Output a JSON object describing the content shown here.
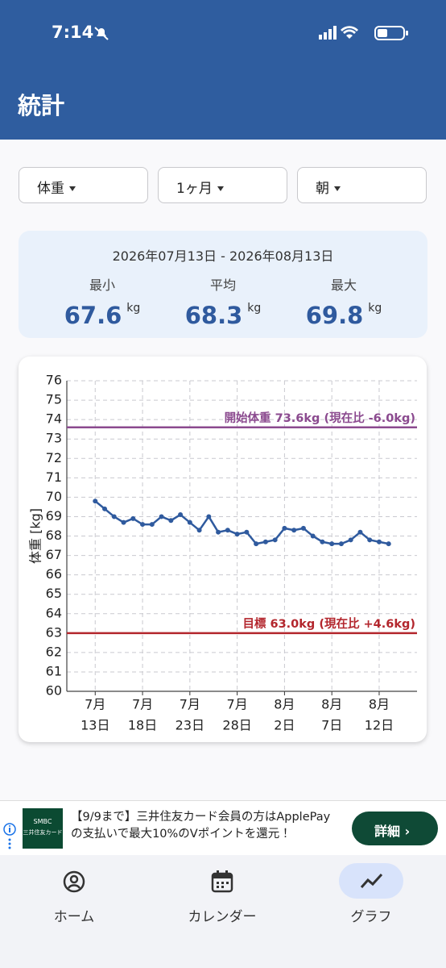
{
  "status_bar": {
    "time": "7:14"
  },
  "header": {
    "title": "統計"
  },
  "filters": [
    {
      "label": "体重"
    },
    {
      "label": "1ヶ月"
    },
    {
      "label": "朝"
    }
  ],
  "summary": {
    "range": "2026年07月13日 - 2026年08月13日",
    "unit": "kg",
    "stats": [
      {
        "label": "最小",
        "value": "67.6"
      },
      {
        "label": "平均",
        "value": "68.3"
      },
      {
        "label": "最大",
        "value": "69.8"
      }
    ]
  },
  "chart_data": {
    "type": "line",
    "y_label": "体重 [kg]",
    "x": [
      "2026-07-13",
      "2026-07-14",
      "2026-07-15",
      "2026-07-16",
      "2026-07-17",
      "2026-07-18",
      "2026-07-19",
      "2026-07-20",
      "2026-07-21",
      "2026-07-22",
      "2026-07-23",
      "2026-07-24",
      "2026-07-25",
      "2026-07-26",
      "2026-07-27",
      "2026-07-28",
      "2026-07-29",
      "2026-07-30",
      "2026-07-31",
      "2026-08-01",
      "2026-08-02",
      "2026-08-03",
      "2026-08-04",
      "2026-08-05",
      "2026-08-06",
      "2026-08-07",
      "2026-08-08",
      "2026-08-09",
      "2026-08-10",
      "2026-08-11",
      "2026-08-12",
      "2026-08-13"
    ],
    "series": [
      {
        "name": "体重",
        "color": "#2f5a9e",
        "values": [
          69.8,
          69.4,
          69.0,
          68.7,
          68.9,
          68.6,
          68.6,
          69.0,
          68.8,
          69.1,
          68.7,
          68.3,
          69.0,
          68.2,
          68.3,
          68.1,
          68.2,
          67.6,
          67.7,
          67.8,
          68.4,
          68.3,
          68.4,
          68.0,
          67.7,
          67.6,
          67.6,
          67.8,
          68.2,
          67.8,
          67.7,
          67.6
        ]
      }
    ],
    "xlim": [
      "2026-07-10",
      "2026-08-16"
    ],
    "xticks": [
      {
        "value": "2026-07-13",
        "label": [
          "7月",
          "13日"
        ]
      },
      {
        "value": "2026-07-18",
        "label": [
          "7月",
          "18日"
        ]
      },
      {
        "value": "2026-07-23",
        "label": [
          "7月",
          "23日"
        ]
      },
      {
        "value": "2026-07-28",
        "label": [
          "7月",
          "28日"
        ]
      },
      {
        "value": "2026-08-02",
        "label": [
          "8月",
          "2日"
        ]
      },
      {
        "value": "2026-08-07",
        "label": [
          "8月",
          "7日"
        ]
      },
      {
        "value": "2026-08-12",
        "label": [
          "8月",
          "12日"
        ]
      }
    ],
    "ylim": [
      60,
      76
    ],
    "yticks": [
      60,
      61,
      62,
      63,
      64,
      65,
      66,
      67,
      68,
      69,
      70,
      71,
      72,
      73,
      74,
      75,
      76
    ],
    "grid": true,
    "reference_lines": [
      {
        "value": 73.6,
        "label": "開始体重 73.6kg (現在比 -6.0kg)",
        "color": "#8b4a8f"
      },
      {
        "value": 63.0,
        "label": "目標 63.0kg (現在比 +4.6kg)",
        "color": "#b3262d"
      }
    ]
  },
  "ad": {
    "logo_top": "SMBC",
    "logo_bottom": "三井住友カード",
    "text": "【9/9まで】三井住友カード会員の方はApplePayの支払いで最大10%のVポイントを還元！",
    "button": "詳細"
  },
  "nav": [
    {
      "label": "ホーム"
    },
    {
      "label": "カレンダー"
    },
    {
      "label": "グラフ"
    }
  ]
}
